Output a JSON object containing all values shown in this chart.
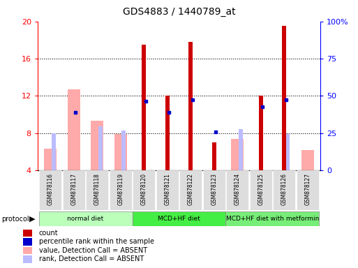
{
  "title": "GDS4883 / 1440789_at",
  "samples": [
    "GSM878116",
    "GSM878117",
    "GSM878118",
    "GSM878119",
    "GSM878120",
    "GSM878121",
    "GSM878122",
    "GSM878123",
    "GSM878124",
    "GSM878125",
    "GSM878126",
    "GSM878127"
  ],
  "count_values": [
    null,
    null,
    null,
    null,
    17.5,
    12.0,
    17.8,
    7.0,
    null,
    12.0,
    19.5,
    null
  ],
  "percentile_values": [
    null,
    10.2,
    null,
    null,
    11.4,
    10.2,
    11.6,
    8.1,
    null,
    10.8,
    11.6,
    null
  ],
  "value_absent": [
    6.3,
    12.7,
    9.3,
    7.9,
    null,
    null,
    null,
    null,
    7.4,
    null,
    null,
    6.2
  ],
  "rank_absent": [
    8.0,
    null,
    8.7,
    8.3,
    null,
    null,
    null,
    null,
    8.4,
    null,
    7.9,
    null
  ],
  "protocols": [
    {
      "label": "normal diet",
      "start": 0,
      "end": 4,
      "color": "#bbffbb"
    },
    {
      "label": "MCD+HF diet",
      "start": 4,
      "end": 8,
      "color": "#44ee44"
    },
    {
      "label": "MCD+HF diet with metformin",
      "start": 8,
      "end": 12,
      "color": "#77ee77"
    }
  ],
  "ylim_left": [
    4,
    20
  ],
  "ylim_right": [
    0,
    100
  ],
  "yticks_left": [
    4,
    8,
    12,
    16,
    20
  ],
  "yticks_right": [
    0,
    25,
    50,
    75,
    100
  ],
  "ytick_labels_right": [
    "0",
    "25",
    "50",
    "75",
    "100%"
  ],
  "count_color": "#cc0000",
  "percentile_color": "#0000cc",
  "value_absent_color": "#ffaaaa",
  "rank_absent_color": "#bbbbff",
  "legend_items": [
    {
      "label": "count",
      "color": "#cc0000"
    },
    {
      "label": "percentile rank within the sample",
      "color": "#0000cc"
    },
    {
      "label": "value, Detection Call = ABSENT",
      "color": "#ffaaaa"
    },
    {
      "label": "rank, Detection Call = ABSENT",
      "color": "#bbbbff"
    }
  ]
}
